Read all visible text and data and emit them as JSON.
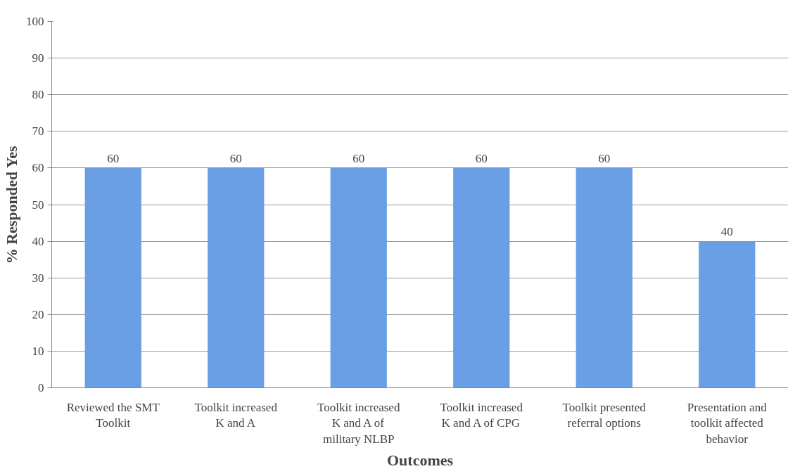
{
  "chart_data": {
    "type": "bar",
    "xlabel": "Outcomes",
    "ylabel": "% Responded Yes",
    "categories": [
      "Reviewed the SMT Toolkit",
      "Toolkit increased K and A",
      "Toolkit increased K and A of military NLBP",
      "Toolkit increased K and A of CPG",
      "Toolkit presented referral options",
      "Presentation and toolkit affected behavior"
    ],
    "values": [
      60,
      60,
      60,
      60,
      60,
      40
    ],
    "color": "#6a9fe6",
    "ylim": [
      0,
      100
    ],
    "yticks": [
      0,
      10,
      20,
      30,
      40,
      50,
      60,
      70,
      80,
      90,
      100
    ],
    "grid": "y",
    "data_labels": true
  }
}
